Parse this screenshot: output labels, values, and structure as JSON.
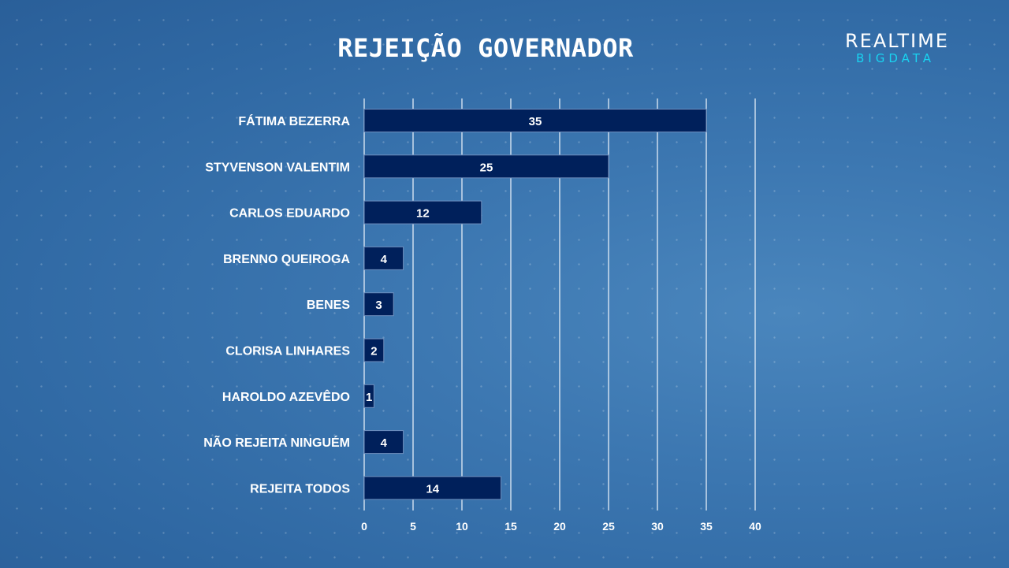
{
  "logo": {
    "top": "REALTIME",
    "bottom": "BIGDATA"
  },
  "colors": {
    "bar": "#00205b",
    "bar_border": "#6f8fbf",
    "grid": "#e6eef8",
    "logo_accent": "#19d3f0"
  },
  "chart_data": {
    "type": "bar",
    "orientation": "horizontal",
    "title": "REJEIÇÃO GOVERNADOR",
    "categories": [
      "FÁTIMA BEZERRA",
      "STYVENSON VALENTIM",
      "CARLOS EDUARDO",
      "BRENNO QUEIROGA",
      "BENES",
      "CLORISA LINHARES",
      "HAROLDO AZEVÊDO",
      "NÃO REJEITA NINGUÉM",
      "REJEITA TODOS"
    ],
    "values": [
      35,
      25,
      12,
      4,
      3,
      2,
      1,
      4,
      14
    ],
    "xlim": [
      0,
      40
    ],
    "xticks": [
      0,
      5,
      10,
      15,
      20,
      25,
      30,
      35,
      40
    ],
    "grid": "vertical",
    "data_labels": true,
    "legend": "none"
  }
}
